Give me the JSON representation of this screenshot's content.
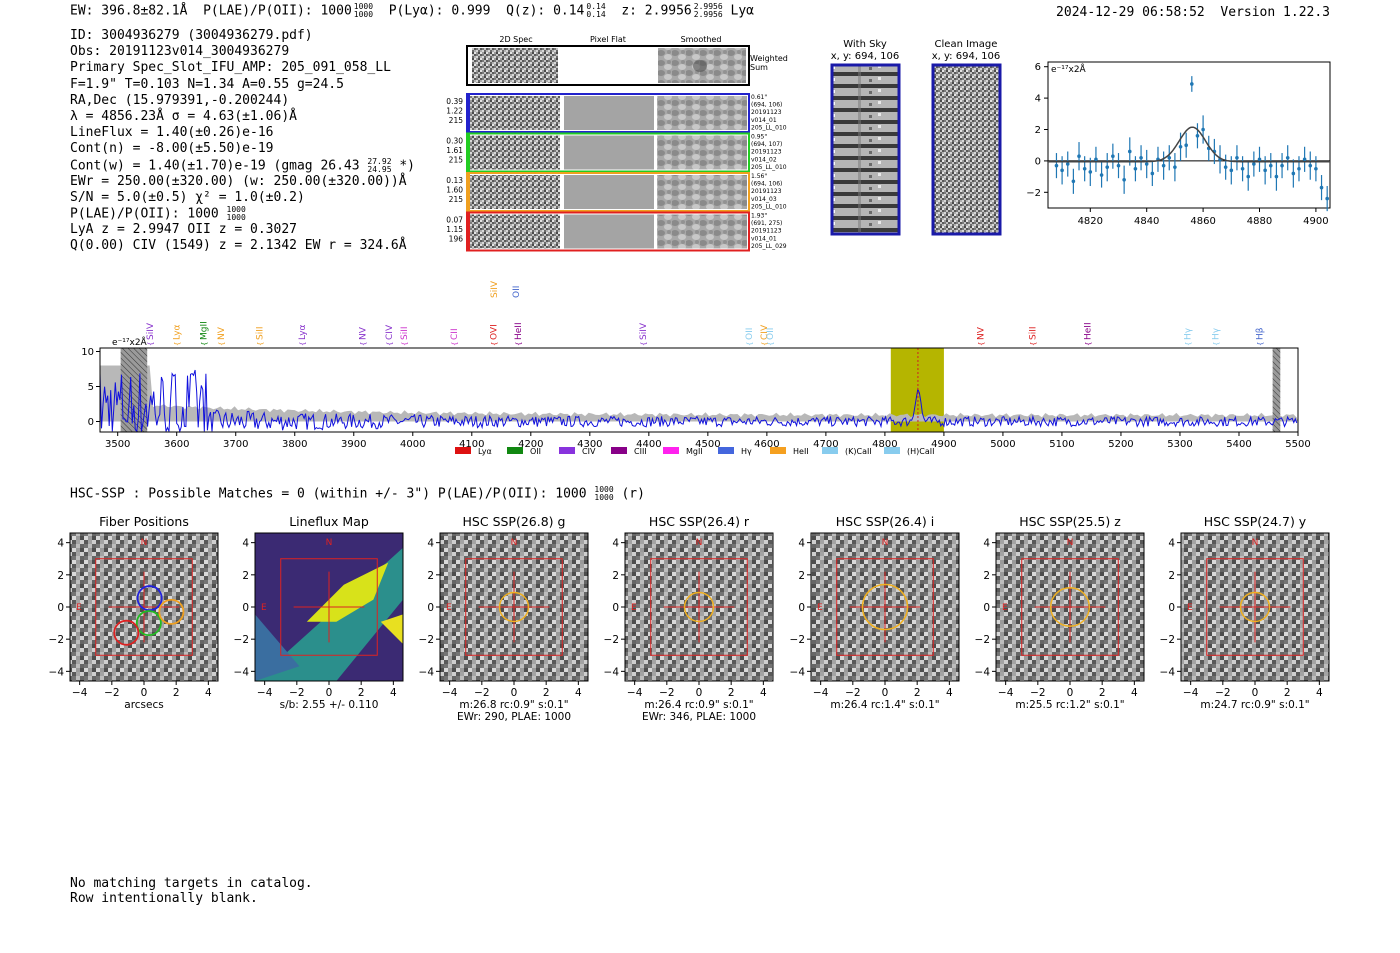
{
  "header": {
    "ew": "EW: 396.8±82.1Å",
    "plae": "P(LAE)/P(OII): 1000",
    "plae_hi": "1000",
    "plae_lo": "1000",
    "plya": "P(Lyα): 0.999",
    "qz": "Q(z): 0.14",
    "qz_hi": "0.14",
    "qz_lo": "0.14",
    "z": "z: 2.9956",
    "z_hi": "2.9956",
    "z_lo": "2.9956",
    "line": "Lyα",
    "timestamp": "2024-12-29 06:58:52",
    "version": "Version 1.22.3"
  },
  "info": {
    "id": "ID: 3004936279 (3004936279.pdf)",
    "obs": "Obs: 20191123v014_3004936279",
    "primary": "Primary Spec_Slot_IFU_AMP: 205_091_058_LL",
    "params": "F=1.9\"  T=0.103  N=1.34  A=0.55  g=24.5",
    "radec": "RA,Dec (15.979391,-0.200244)",
    "lambda": "λ = 4856.23Å  σ = 4.63(±1.06)Å",
    "lineflux": "LineFlux = 1.40(±0.26)e-16",
    "contn": "Cont(n) = -8.00(±5.50)e-19",
    "contw": "Cont(w) = 1.40(±1.70)e-19 (gmag 26.43",
    "gmag_hi": "27.92",
    "gmag_lo": "24.95",
    "contw_tail": "*)",
    "ewr": "EWr = 250.00(±320.00) (w: 250.00(±320.00))Å",
    "sn": "S/N = 5.0(±0.5)  χ² = 1.0(±0.2)",
    "plae": "P(LAE)/P(OII): 1000",
    "plae_hi": "1000",
    "plae_lo": "1000",
    "lya": "LyA z = 2.9947  OII z = 0.3027",
    "q": "Q(0.00) CIV (1549) z = 2.1342  EW r = 324.6Å"
  },
  "cutouts": {
    "col_headers": [
      "2D Spec",
      "Pixel Flat",
      "Smoothed"
    ],
    "weighted_sum": [
      "Weighted",
      "Sum"
    ],
    "rows": [
      {
        "left": [
          "0.39",
          "1.22",
          "215"
        ],
        "right": [
          "0.61\"",
          "(694, 106)",
          "20191123",
          "v014_01",
          "205_LL_010"
        ],
        "color": "#2222cc"
      },
      {
        "left": [
          "0.30",
          "1.61",
          "215"
        ],
        "right": [
          "0.95\"",
          "(694, 107)",
          "20191123",
          "v014_02",
          "205_LL_010"
        ],
        "color": "#22cc22"
      },
      {
        "left": [
          "0.13",
          "1.60",
          "215"
        ],
        "right": [
          "1.56\"",
          "(694, 106)",
          "20191123",
          "v014_03",
          "205_LL_010"
        ],
        "color": "#f0a020"
      },
      {
        "left": [
          "0.07",
          "1.15",
          "196"
        ],
        "right": [
          "1.93\"",
          "(691, 275)",
          "20191123",
          "v014_01",
          "205_LL_029"
        ],
        "color": "#e02020"
      }
    ],
    "with_sky": [
      "With Sky",
      "x, y: 694, 106"
    ],
    "clean": [
      "Clean Image",
      "x, y: 694, 106"
    ]
  },
  "fit_plot": {
    "unit": "e⁻¹⁷x2Å",
    "xticks": [
      "4820",
      "4840",
      "4860",
      "4880",
      "4900"
    ],
    "yticks": [
      "6",
      "4",
      "2",
      "0",
      "−2"
    ]
  },
  "spectrum": {
    "unit": "e⁻¹⁷x2Å",
    "yticks": [
      "10",
      "5",
      "0"
    ],
    "xticks": [
      "3500",
      "3600",
      "3700",
      "3800",
      "3900",
      "4000",
      "4100",
      "4200",
      "4300",
      "4400",
      "4500",
      "4600",
      "4700",
      "4800",
      "4900",
      "5000",
      "5100",
      "5200",
      "5300",
      "5400",
      "5500"
    ],
    "lines": [
      {
        "name": "SiIV",
        "x": 3555,
        "color": "#8833cc"
      },
      {
        "name": "Lyα",
        "x": 3600,
        "color": "#f0a020"
      },
      {
        "name": "MgII",
        "x": 3645,
        "color": "#118811"
      },
      {
        "name": "NV",
        "x": 3675,
        "color": "#f0a020"
      },
      {
        "name": "SiII",
        "x": 3740,
        "color": "#f0a020"
      },
      {
        "name": "Lyα",
        "x": 3812,
        "color": "#8833cc"
      },
      {
        "name": "NV",
        "x": 3915,
        "color": "#8833cc"
      },
      {
        "name": "CIV",
        "x": 3960,
        "color": "#8833cc"
      },
      {
        "name": "SiII",
        "x": 3985,
        "color": "#cc33cc"
      },
      {
        "name": "CII",
        "x": 4070,
        "color": "#cc33cc"
      },
      {
        "name": "OVI",
        "x": 4137,
        "color": "#dd2222"
      },
      {
        "name": "HeII",
        "x": 4178,
        "color": "#880088"
      },
      {
        "name": "SiIV",
        "x": 4390,
        "color": "#8833cc"
      },
      {
        "name": "OII",
        "x": 4570,
        "color": "#88ccee"
      },
      {
        "name": "CIV",
        "x": 4595,
        "color": "#f0a020"
      },
      {
        "name": "OII",
        "x": 4605,
        "color": "#88ccee"
      },
      {
        "name": "NV",
        "x": 4962,
        "color": "#dd2222"
      },
      {
        "name": "SiII",
        "x": 5050,
        "color": "#dd2222"
      },
      {
        "name": "HeII",
        "x": 5143,
        "color": "#880088"
      },
      {
        "name": "Hγ",
        "x": 5313,
        "color": "#88ccee"
      },
      {
        "name": "Hγ",
        "x": 5360,
        "color": "#88ccee"
      },
      {
        "name": "Hβ",
        "x": 5435,
        "color": "#4466cc"
      }
    ],
    "top_lines": [
      {
        "name": "SiIV",
        "x": 4138,
        "color": "#f0a020"
      },
      {
        "name": "OII",
        "x": 4175,
        "color": "#4466cc"
      }
    ],
    "legend": [
      {
        "label": "Lyα",
        "color": "#dd1111"
      },
      {
        "label": "OII",
        "color": "#118811"
      },
      {
        "label": "CIV",
        "color": "#8833dd"
      },
      {
        "label": "CIII",
        "color": "#880088"
      },
      {
        "label": "MgII",
        "color": "#ff22ee"
      },
      {
        "label": "Hγ",
        "color": "#4466dd"
      },
      {
        "label": "HeII",
        "color": "#f5a020"
      },
      {
        "label": "(K)CaII",
        "color": "#88ccee"
      },
      {
        "label": "(H)CaII",
        "color": "#88ccee"
      }
    ]
  },
  "hsc_summary": {
    "text": "HSC-SSP : Possible Matches = 0 (within +/- 3\")  P(LAE)/P(OII): 1000",
    "hi": "1000",
    "lo": "1000",
    "tail": "(r)"
  },
  "stamps": [
    {
      "title": "Fiber Positions",
      "cap": [
        "arcsecs"
      ],
      "kind": "fibers"
    },
    {
      "title": "Lineflux Map",
      "cap": [
        "s/b: 2.55 +/- 0.110"
      ],
      "kind": "lineflux"
    },
    {
      "title": "HSC SSP(26.8) g",
      "cap": [
        "m:26.8 rc:0.9\"  s:0.1\"",
        "EWr: 290, PLAE: 1000"
      ],
      "kind": "image",
      "r": 0.9
    },
    {
      "title": "HSC SSP(26.4) r",
      "cap": [
        "m:26.4 rc:0.9\"  s:0.1\"",
        "EWr: 346, PLAE: 1000"
      ],
      "kind": "image",
      "r": 0.9
    },
    {
      "title": "HSC SSP(26.4) i",
      "cap": [
        "m:26.4 rc:1.4\"  s:0.1\""
      ],
      "kind": "image",
      "r": 1.4
    },
    {
      "title": "HSC SSP(25.5) z",
      "cap": [
        "m:25.5 rc:1.2\"  s:0.1\""
      ],
      "kind": "image",
      "r": 1.2
    },
    {
      "title": "HSC SSP(24.7) y",
      "cap": [
        "m:24.7 rc:0.9\"  s:0.1\""
      ],
      "kind": "image",
      "r": 0.9
    }
  ],
  "stamp_axes": {
    "ticks": [
      "4",
      "2",
      "0",
      "−2",
      "−4"
    ],
    "xticks": [
      "−4",
      "−2",
      "0",
      "2",
      "4"
    ],
    "north": "N",
    "east": "E"
  },
  "footer": [
    "No matching targets in catalog.",
    "Row intentionally blank."
  ],
  "chart_data": [
    {
      "type": "scatter",
      "title": "",
      "xlabel": "",
      "ylabel": "e-17 x2Å",
      "xlim": [
        4805,
        4905
      ],
      "ylim": [
        -3,
        6.3
      ],
      "series": [
        {
          "x": [
            4808,
            4810,
            4812,
            4814,
            4816,
            4818,
            4820,
            4822,
            4824,
            4826,
            4828,
            4830,
            4832,
            4834,
            4836,
            4838,
            4840,
            4842,
            4844,
            4846,
            4848,
            4850,
            4852,
            4854,
            4856,
            4858,
            4860,
            4862,
            4864,
            4866,
            4868,
            4870,
            4872,
            4874,
            4876,
            4878,
            4880,
            4882,
            4884,
            4886,
            4888,
            4890,
            4892,
            4894,
            4896,
            4898,
            4900,
            4902,
            4904
          ],
          "y": [
            -0.3,
            -0.6,
            -0.2,
            -1.3,
            0.3,
            -0.5,
            -0.7,
            0.1,
            -0.9,
            -0.4,
            0.3,
            -0.3,
            -1.2,
            0.6,
            -0.5,
            0.2,
            -0.2,
            -0.8,
            0.1,
            -0.3,
            0.2,
            -0.4,
            0.9,
            1.0,
            4.9,
            1.6,
            2.0,
            0.8,
            0.6,
            0.1,
            -0.4,
            -0.6,
            0.2,
            -0.5,
            -1.0,
            -0.2,
            0.1,
            -0.6,
            -0.3,
            -1.0,
            -0.3,
            0.2,
            -0.8,
            -0.5,
            0.1,
            -0.3,
            -0.5,
            -1.7,
            -2.4
          ],
          "err": [
            0.8,
            0.9,
            0.8,
            0.8,
            0.9,
            0.8,
            0.9,
            0.8,
            0.8,
            0.9,
            0.8,
            0.8,
            0.9,
            0.9,
            0.8,
            0.8,
            0.9,
            0.8,
            0.8,
            0.9,
            0.8,
            0.9,
            0.9,
            0.8,
            0.5,
            0.8,
            0.9,
            0.8,
            0.8,
            0.9,
            0.8,
            0.9,
            0.8,
            0.8,
            0.9,
            0.8,
            0.8,
            0.9,
            0.8,
            0.9,
            0.8,
            0.8,
            0.9,
            0.8,
            0.8,
            0.9,
            0.8,
            0.8,
            0.8
          ]
        },
        {
          "fit": {
            "center": 4856.2,
            "sigma": 4.63,
            "amp": 2.2,
            "baseline": -0.05
          }
        }
      ]
    },
    {
      "type": "line",
      "title": "",
      "xlabel": "",
      "ylabel": "e-17 x2Å",
      "xlim": [
        3470,
        5500
      ],
      "ylim": [
        -1.5,
        10.5
      ],
      "highlight": {
        "x0": 4810,
        "x1": 4900,
        "center": 4856
      },
      "masked": [
        [
          3505,
          3545
        ],
        [
          3540,
          3550
        ],
        [
          5457,
          5470
        ]
      ]
    }
  ]
}
